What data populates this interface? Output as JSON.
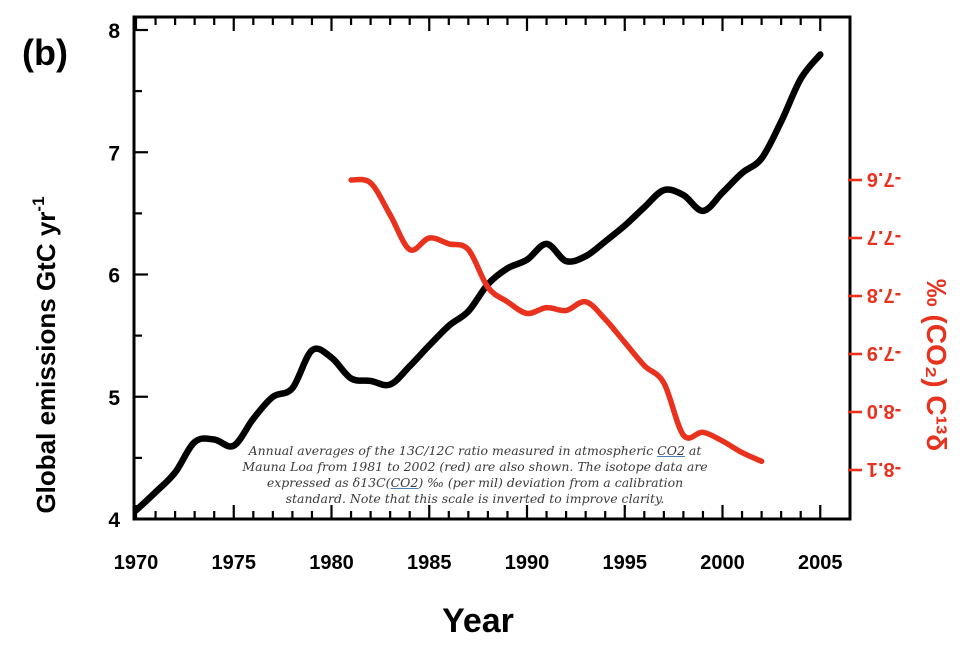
{
  "panel_label": "(b)",
  "caption": {
    "text_1": "Annual averages of the 13C/12C ratio measured in atmospheric ",
    "link_1": "CO2",
    "text_2": " at Mauna Loa from 1981 to 2002 (red) are also shown. The isotope data are expressed as δ13C(",
    "link_2": "CO2",
    "text_3": ") ‰ (per mil) deviation from a calibration standard. Note that this scale is inverted to improve clarity."
  },
  "chart_data": {
    "type": "line",
    "xlabel": "Year",
    "ylabel": "Global emissions GtC yr",
    "ylabel_sup": "-1",
    "y2label": "‰ (CO₂) C¹³δ",
    "xlim": [
      1970,
      2006
    ],
    "ylim": [
      4,
      8
    ],
    "y2lim": [
      -7.55,
      -8.2
    ],
    "y2_inverted": true,
    "y2_labels_mirrored": true,
    "x_ticks": [
      "1970",
      "1975",
      "1980",
      "1985",
      "1990",
      "1995",
      "2000",
      "2005"
    ],
    "y_ticks": [
      "4",
      "5",
      "6",
      "7",
      "8"
    ],
    "y2_ticks": [
      {
        "value": -7.6,
        "label": "-7.6"
      },
      {
        "value": -7.7,
        "label": "-7.7"
      },
      {
        "value": -7.8,
        "label": "-7.8"
      },
      {
        "value": -7.9,
        "label": "-7.9"
      },
      {
        "value": -8.0,
        "label": "-8.0"
      },
      {
        "value": -8.1,
        "label": "-8.1"
      }
    ],
    "series": [
      {
        "axis": "left",
        "color": "#000000",
        "x": [
          1970,
          1971,
          1972,
          1973,
          1974,
          1975,
          1976,
          1977,
          1978,
          1979,
          1980,
          1981,
          1982,
          1983,
          1984,
          1985,
          1986,
          1987,
          1988,
          1989,
          1990,
          1991,
          1992,
          1993,
          1994,
          1995,
          1996,
          1997,
          1998,
          1999,
          2000,
          2001,
          2002,
          2003,
          2004,
          2005
        ],
        "y": [
          4.07,
          4.22,
          4.38,
          4.63,
          4.65,
          4.6,
          4.82,
          5.0,
          5.07,
          5.38,
          5.32,
          5.15,
          5.13,
          5.1,
          5.25,
          5.42,
          5.58,
          5.7,
          5.92,
          6.05,
          6.12,
          6.25,
          6.11,
          6.15,
          6.27,
          6.4,
          6.55,
          6.69,
          6.65,
          6.52,
          6.67,
          6.83,
          6.95,
          7.25,
          7.6,
          7.8
        ]
      },
      {
        "axis": "right",
        "color": "#e8321e",
        "x": [
          1981,
          1982,
          1983,
          1984,
          1985,
          1986,
          1987,
          1988,
          1989,
          1990,
          1991,
          1992,
          1993,
          1994,
          1995,
          1996,
          1997,
          1998,
          1999,
          2000,
          2001,
          2002
        ],
        "y": [
          -7.6,
          -7.605,
          -7.66,
          -7.72,
          -7.7,
          -7.71,
          -7.72,
          -7.785,
          -7.81,
          -7.83,
          -7.82,
          -7.825,
          -7.81,
          -7.84,
          -7.88,
          -7.92,
          -7.95,
          -8.04,
          -8.035,
          -8.05,
          -8.07,
          -8.085
        ]
      }
    ]
  }
}
